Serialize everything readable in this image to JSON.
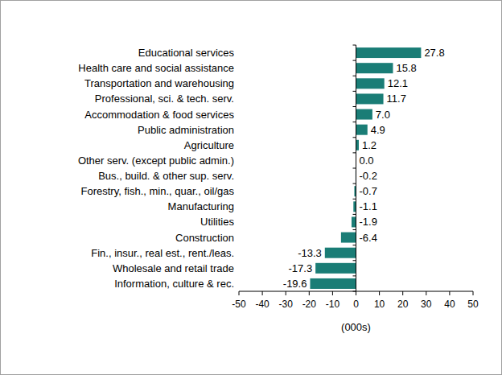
{
  "chart_data": {
    "type": "bar",
    "orientation": "horizontal",
    "categories": [
      "Educational services",
      "Health care and social assistance",
      "Transportation and warehousing",
      "Professional, sci. & tech. serv.",
      "Accommodation & food services",
      "Public administration",
      "Agriculture",
      "Other serv. (except public admin.)",
      "Bus., build. & other sup. serv.",
      "Forestry, fish., min., quar., oil/gas",
      "Manufacturing",
      "Utilities",
      "Construction",
      "Fin., insur., real est., rent./leas.",
      "Wholesale and retail trade",
      "Information, culture & rec."
    ],
    "values": [
      27.8,
      15.8,
      12.1,
      11.7,
      7.0,
      4.9,
      1.2,
      0.0,
      -0.2,
      -0.7,
      -1.1,
      -1.9,
      -6.4,
      -13.3,
      -17.3,
      -19.6
    ],
    "value_labels": [
      "27.8",
      "15.8",
      "12.1",
      "11.7",
      "7.0",
      "4.9",
      "1.2",
      "0.0",
      "-0.2",
      "-0.7",
      "-1.1",
      "-1.9",
      "-6.4",
      "-13.3",
      "-17.3",
      "-19.6"
    ],
    "data_labels": true,
    "color": "#1a7d76",
    "xlim": [
      -50,
      50
    ],
    "xticks": [
      -50,
      -40,
      -30,
      -20,
      -10,
      0,
      10,
      20,
      30,
      40,
      50
    ],
    "xlabel": "(000s)",
    "grid": false
  }
}
